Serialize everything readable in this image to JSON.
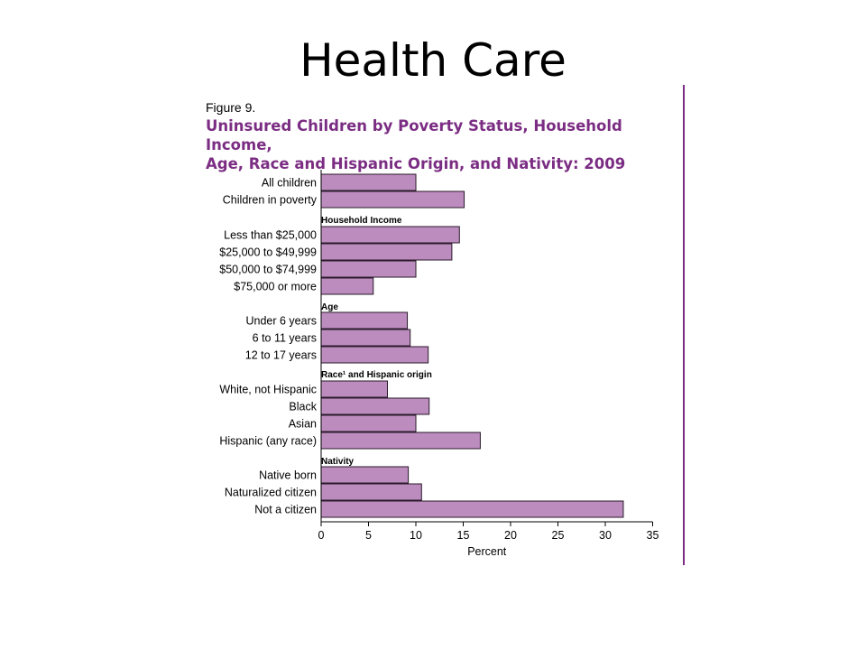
{
  "slide": {
    "title": "Health Care"
  },
  "figure": {
    "label": "Figure 9.",
    "title_line1": "Uninsured Children by Poverty Status, Household Income,",
    "title_line2": "Age, Race and Hispanic Origin, and Nativity: 2009"
  },
  "colors": {
    "bar_fill": "#bc8cbf",
    "bar_stroke": "#2a1a2a",
    "title_purple": "#7b2d83"
  },
  "chart_data": {
    "type": "bar",
    "orientation": "horizontal",
    "xlabel": "Percent",
    "xlim": [
      0,
      35
    ],
    "xticks": [
      "0",
      "5",
      "10",
      "15",
      "20",
      "25",
      "30",
      "35"
    ],
    "grid": false,
    "groups": [
      {
        "name": "",
        "categories": [
          "All children",
          "Children in poverty"
        ],
        "values": [
          10,
          15.1
        ]
      },
      {
        "name": "Household Income",
        "categories": [
          "Less than $25,000",
          "$25,000 to $49,999",
          "$50,000 to $74,999",
          "$75,000 or more"
        ],
        "values": [
          14.6,
          13.8,
          10,
          5.5
        ]
      },
      {
        "name": "Age",
        "categories": [
          "Under 6 years",
          "6 to 11 years",
          "12 to 17 years"
        ],
        "values": [
          9.1,
          9.4,
          11.3
        ]
      },
      {
        "name": "Race¹ and Hispanic origin",
        "categories": [
          "White, not Hispanic",
          "Black",
          "Asian",
          "Hispanic (any race)"
        ],
        "values": [
          7,
          11.4,
          10,
          16.8
        ]
      },
      {
        "name": "Nativity",
        "categories": [
          "Native born",
          "Naturalized citizen",
          "Not a citizen"
        ],
        "values": [
          9.2,
          10.6,
          31.9
        ]
      }
    ]
  }
}
